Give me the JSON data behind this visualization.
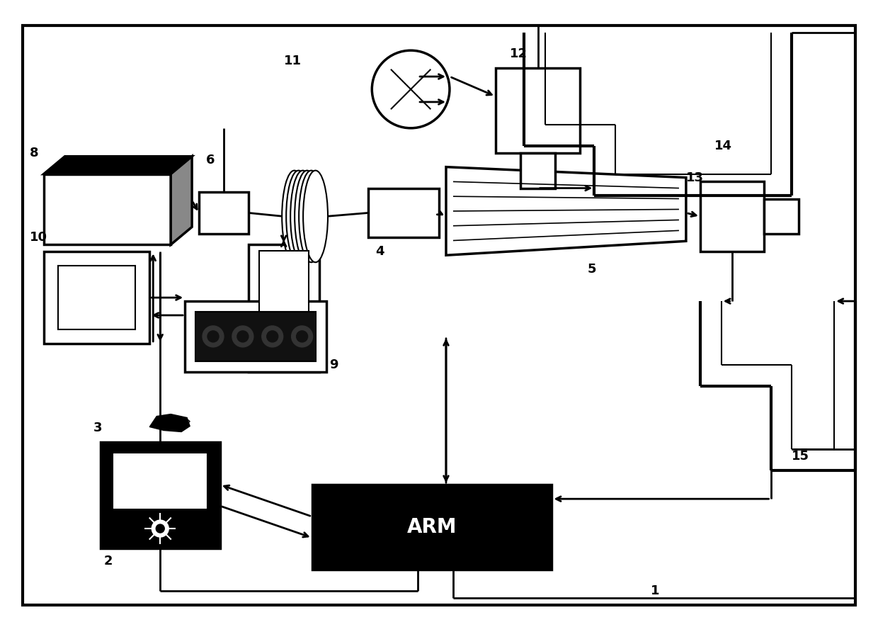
{
  "bg": "#ffffff",
  "lw_outer": 3.0,
  "lw_comp": 2.5,
  "lw_inner": 1.5,
  "lw_line": 2.0,
  "lw_coil": 1.5,
  "fs_label": 13,
  "arm_fs": 20,
  "fig_w": 12.4,
  "fig_h": 8.85,
  "dpi": 100,
  "xmax": 124,
  "ymax": 88.5
}
